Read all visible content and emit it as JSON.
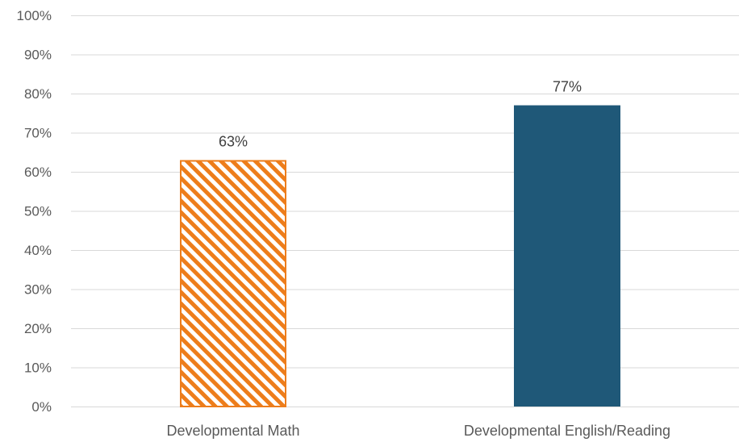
{
  "chart_data": {
    "type": "bar",
    "categories": [
      "Developmental Math",
      "Developmental English/Reading"
    ],
    "values": [
      63,
      77
    ],
    "data_labels": [
      "63%",
      "77%"
    ],
    "title": "",
    "xlabel": "",
    "ylabel": "",
    "ylim": [
      0,
      100
    ],
    "y_ticks": [
      0,
      10,
      20,
      30,
      40,
      50,
      60,
      70,
      80,
      90,
      100
    ],
    "y_tick_labels": [
      "0%",
      "10%",
      "20%",
      "30%",
      "40%",
      "50%",
      "60%",
      "70%",
      "80%",
      "90%",
      "100%"
    ],
    "grid": true,
    "legend": "none",
    "bar_styles": [
      {
        "fill": "hatched",
        "color": "#ed7d1b",
        "background": "#ffffff"
      },
      {
        "fill": "solid",
        "color": "#1f5878"
      }
    ]
  }
}
